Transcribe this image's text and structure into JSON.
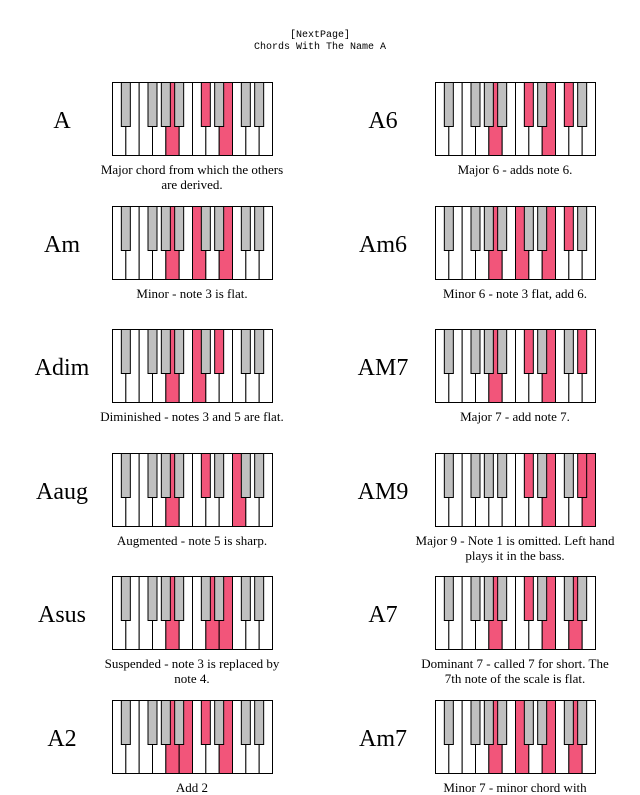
{
  "header": {
    "link": "[NextPage]",
    "title": "Chords With The Name A"
  },
  "chords": [
    {
      "name": "A",
      "description": "Major chord from which the others are derived."
    },
    {
      "name": "A6",
      "description": "Major 6 - adds note 6."
    },
    {
      "name": "Am",
      "description": "Minor - note 3 is flat."
    },
    {
      "name": "Am6",
      "description": "Minor 6 - note 3 flat, add 6."
    },
    {
      "name": "Adim",
      "description": "Diminished - notes 3 and 5 are flat."
    },
    {
      "name": "AM7",
      "description": "Major 7 - add note 7."
    },
    {
      "name": "Aaug",
      "description": "Augmented - note 5 is sharp."
    },
    {
      "name": "AM9",
      "description": "Major 9 - Note 1 is omitted. Left hand plays it in the bass."
    },
    {
      "name": "Asus",
      "description": "Suspended - note 3 is replaced by note 4."
    },
    {
      "name": "A7",
      "description": "Dominant 7 - called 7 for short. The 7th note of the scale is flat."
    },
    {
      "name": "A2",
      "description": "Add 2"
    },
    {
      "name": "Am7",
      "description": "Minor 7 - minor chord with"
    }
  ]
}
